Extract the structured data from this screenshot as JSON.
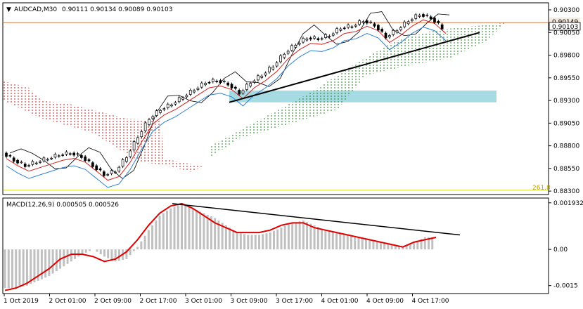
{
  "header": {
    "symbol": "AUDCAD,M30",
    "ohlc": "0.90111 0.90134 0.90089 0.90103"
  },
  "price_panel": {
    "current_price_label": "0.90103",
    "other_price_label": "0.90149",
    "fib_label": "261.8"
  },
  "macd_panel": {
    "title": "MACD(12,26,9) 0.000505 0.000526"
  },
  "colors": {
    "background": "#ffffff",
    "kijun": "#d32020",
    "tenkan": "#2f7fd0",
    "chikou": "#000000",
    "cloud_bull": "#208020",
    "cloud_bear": "#c02020",
    "support_zone": "#a7dbe3",
    "histogram": "#c0c0c0",
    "signal": "#e00000",
    "horizontal_line": "#e07030",
    "fib_line": "#e0e000"
  },
  "chart_data": [
    {
      "type": "candlestick",
      "symbol": "AUDCAD",
      "timeframe": "M30",
      "ylim": [
        0.8827,
        0.9037
      ],
      "yticks": [
        "0.90300",
        "0.90050",
        "0.89800",
        "0.89550",
        "0.89300",
        "0.89050",
        "0.88800",
        "0.88550",
        "0.88300"
      ],
      "xticks": [
        "1 Oct 2019",
        "2 Oct 01:00",
        "2 Oct 09:00",
        "2 Oct 17:00",
        "3 Oct 01:00",
        "3 Oct 09:00",
        "3 Oct 17:00",
        "4 Oct 01:00",
        "4 Oct 09:00",
        "4 Oct 17:00"
      ],
      "close_path": [
        0.8872,
        0.8864,
        0.8858,
        0.8862,
        0.8866,
        0.887,
        0.8872,
        0.8868,
        0.8858,
        0.8848,
        0.8852,
        0.8868,
        0.889,
        0.891,
        0.892,
        0.8926,
        0.8934,
        0.8942,
        0.895,
        0.8952,
        0.8948,
        0.8938,
        0.895,
        0.8958,
        0.8968,
        0.8982,
        0.8992,
        0.8999,
        0.8998,
        0.9002,
        0.901,
        0.9012,
        0.9018,
        0.9013,
        0.9,
        0.9008,
        0.9018,
        0.9025,
        0.9021,
        0.901
      ],
      "levels": {
        "horizontal_line": 0.9016,
        "fib_261_8": 0.8831,
        "support_zone": [
          0.8928,
          0.8941
        ]
      },
      "trendline": {
        "from": [
          0.8928
        ],
        "to": [
          0.9005
        ]
      }
    },
    {
      "type": "bar",
      "name": "MACD(12,26,9)",
      "ylim": [
        -0.0018,
        0.0021
      ],
      "yticks": [
        "0.001932",
        "0.00",
        "-0.0015"
      ],
      "histogram": [
        -0.0016,
        -0.0016,
        -0.0015,
        -0.0013,
        -0.0011,
        -0.0008,
        -0.0005,
        -0.0002,
        0.0,
        -0.0003,
        -0.0005,
        -0.0004,
        0.0001,
        0.0008,
        0.0014,
        0.0017,
        0.0019,
        0.0017,
        0.0015,
        0.0013,
        0.001,
        0.0007,
        0.0006,
        0.0006,
        0.0007,
        0.0009,
        0.0011,
        0.0012,
        0.001,
        0.0008,
        0.0007,
        0.0006,
        0.0005,
        0.0004,
        0.0003,
        0.0002,
        0.0001,
        0.0003,
        0.0005,
        0.0005
      ],
      "signal": [
        -0.0017,
        -0.0016,
        -0.0014,
        -0.0011,
        -0.0008,
        -0.0004,
        -0.0002,
        -0.0002,
        -0.0003,
        -0.0005,
        -0.0004,
        -0.0001,
        0.0004,
        0.001,
        0.0015,
        0.0018,
        0.0019,
        0.0017,
        0.0014,
        0.0011,
        0.0009,
        0.0007,
        0.0007,
        0.0007,
        0.0008,
        0.001,
        0.0011,
        0.0011,
        0.0009,
        0.0008,
        0.0007,
        0.0006,
        0.0005,
        0.0004,
        0.0003,
        0.0002,
        0.0001,
        0.0003,
        0.0004,
        0.0005
      ],
      "trendline": {
        "from": 0.0019,
        "to": 0.0006
      }
    }
  ]
}
